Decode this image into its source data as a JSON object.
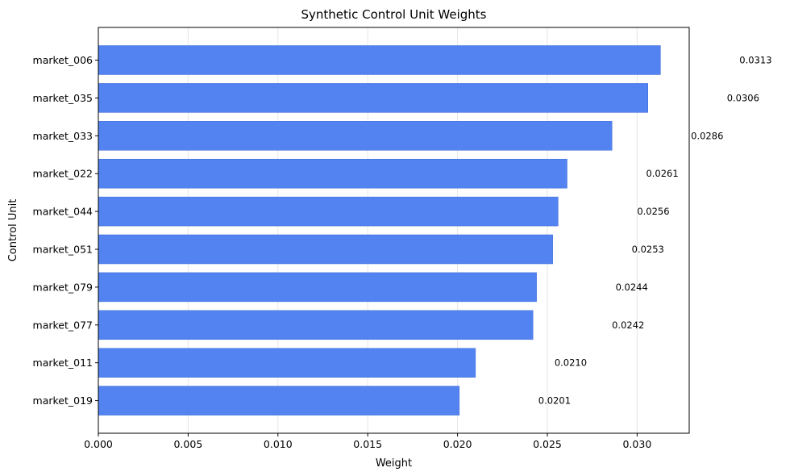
{
  "chart_data": {
    "type": "bar",
    "orientation": "horizontal",
    "title": "Synthetic Control Unit Weights",
    "xlabel": "Weight",
    "ylabel": "Control Unit",
    "categories": [
      "market_006",
      "market_035",
      "market_033",
      "market_022",
      "market_044",
      "market_051",
      "market_079",
      "market_077",
      "market_011",
      "market_019"
    ],
    "values": [
      0.0313,
      0.0306,
      0.0286,
      0.0261,
      0.0256,
      0.0253,
      0.0244,
      0.0242,
      0.021,
      0.0201
    ],
    "value_labels": [
      "0.0313",
      "0.0306",
      "0.0286",
      "0.0261",
      "0.0256",
      "0.0253",
      "0.0244",
      "0.0242",
      "0.0210",
      "0.0201"
    ],
    "xlim": [
      0,
      0.0329
    ],
    "xticks": [
      0,
      0.005,
      0.01,
      0.015,
      0.02,
      0.025,
      0.03
    ],
    "xtick_labels": [
      "0.000",
      "0.005",
      "0.010",
      "0.015",
      "0.020",
      "0.025",
      "0.030"
    ],
    "grid": "x",
    "colors": {
      "bar": "#5283F0",
      "bar_edge": "#3F6BD8",
      "grid": "#e6e6e6"
    }
  }
}
